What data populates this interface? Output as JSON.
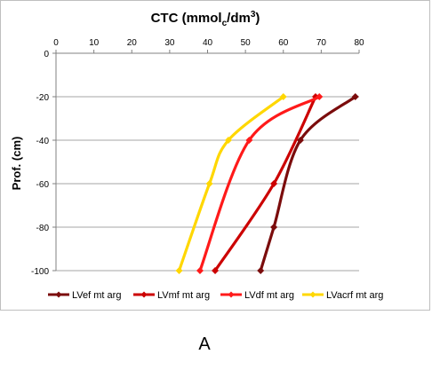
{
  "panel_label": "A",
  "chart_data": {
    "type": "line",
    "title_main": "CTC (mmol",
    "title_sub": "c",
    "title_mid": "/dm",
    "title_sup": "3",
    "title_end": ")",
    "xlabel": "",
    "ylabel": "Prof. (cm)",
    "xlim": [
      0,
      80
    ],
    "ylim": [
      -100,
      0
    ],
    "xticks": [
      0,
      10,
      20,
      30,
      40,
      50,
      60,
      70,
      80
    ],
    "yticks": [
      0,
      -20,
      -40,
      -60,
      -80,
      -100
    ],
    "x_axis_position": "top",
    "grid": "horizontal",
    "legend_position": "bottom",
    "series": [
      {
        "name": "LVef mt arg",
        "color": "#7b0c0c",
        "points": [
          [
            54,
            -100
          ],
          [
            57.5,
            -80
          ],
          [
            64.5,
            -40
          ],
          [
            79,
            -20
          ]
        ]
      },
      {
        "name": "LVmf mt arg",
        "color": "#cc0000",
        "points": [
          [
            42,
            -100
          ],
          [
            57.5,
            -60
          ],
          [
            68.5,
            -20
          ]
        ]
      },
      {
        "name": "LVdf mt arg",
        "color": "#ff1a1a",
        "points": [
          [
            38,
            -100
          ],
          [
            51,
            -40
          ],
          [
            69.5,
            -20
          ]
        ]
      },
      {
        "name": "LVacrf mt arg",
        "color": "#ffd700",
        "points": [
          [
            32.5,
            -100
          ],
          [
            40.5,
            -60
          ],
          [
            45.5,
            -40
          ],
          [
            60,
            -20
          ]
        ]
      }
    ]
  }
}
